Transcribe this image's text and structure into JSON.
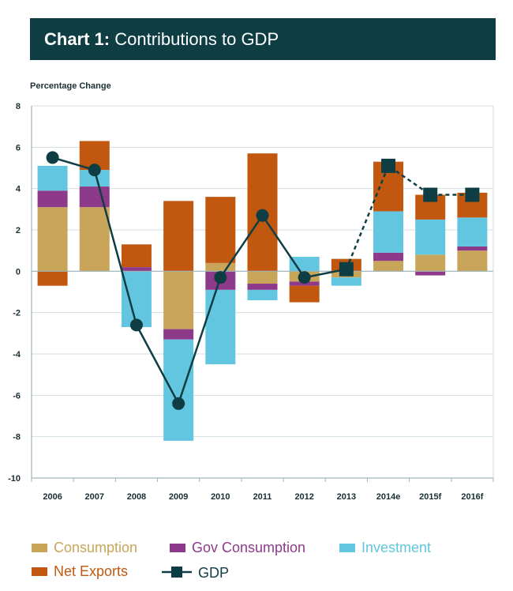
{
  "chart_data": {
    "type": "bar",
    "stacked": true,
    "title_bold": "Chart 1:",
    "title_rest": "Contributions to GDP",
    "ylabel": "Percentage Change",
    "xlabel": "",
    "ylim": [
      -10,
      8
    ],
    "yticks": [
      8,
      6,
      4,
      2,
      0,
      -2,
      -4,
      -6,
      -8,
      -10
    ],
    "categories": [
      "2006",
      "2007",
      "2008",
      "2009",
      "2010",
      "2011",
      "2012",
      "2013",
      "2014e",
      "2015f",
      "2016f"
    ],
    "series": [
      {
        "name": "Consumption",
        "color": "#c9a55a",
        "values": [
          3.1,
          3.1,
          0.0,
          -2.8,
          0.4,
          -0.6,
          -0.5,
          -0.3,
          0.5,
          0.8,
          1.0
        ]
      },
      {
        "name": "Gov Consumption",
        "color": "#8e3a8a",
        "values": [
          0.8,
          1.0,
          0.2,
          -0.5,
          -0.9,
          -0.3,
          -0.2,
          0.0,
          0.4,
          -0.2,
          0.2
        ]
      },
      {
        "name": "Investment",
        "color": "#63c6e0",
        "values": [
          1.2,
          0.8,
          -2.7,
          -4.9,
          -3.6,
          -0.5,
          0.7,
          -0.4,
          2.0,
          1.7,
          1.4
        ]
      },
      {
        "name": "Net Exports",
        "color": "#c2580f",
        "values": [
          -0.7,
          1.4,
          1.1,
          3.4,
          3.2,
          5.7,
          -0.8,
          0.6,
          2.4,
          1.2,
          1.2
        ]
      }
    ],
    "gdp": {
      "name": "GDP",
      "color": "#0e3e44",
      "values": [
        5.5,
        4.9,
        -2.6,
        -6.4,
        -0.3,
        2.7,
        -0.3,
        0.1,
        5.1,
        3.7,
        3.7
      ],
      "actual_through_index": 7
    },
    "legend_position": "bottom"
  }
}
